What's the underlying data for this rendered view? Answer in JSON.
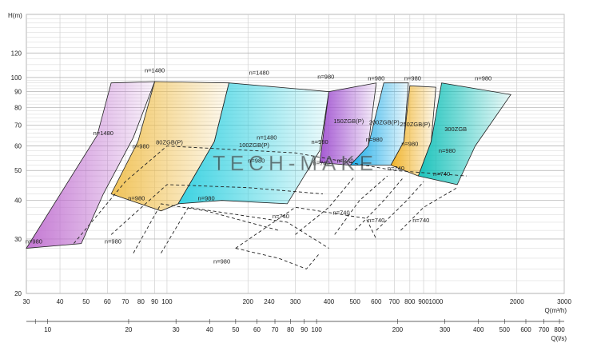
{
  "chart_data": {
    "type": "area",
    "title": "",
    "ylabel": "H(m)",
    "xlabel": "Q(m³/h)",
    "x2label": "Q(l/s)",
    "yscale": "log",
    "xscale": "log",
    "ylim": [
      20,
      160
    ],
    "xlim": [
      30,
      3000
    ],
    "grid": true,
    "watermark": "TECH-MAKE",
    "y_ticks": [
      "20",
      "30",
      "40",
      "50",
      "60",
      "70",
      "80",
      "90",
      "100",
      "120"
    ],
    "x_ticks": [
      {
        "v": 30,
        "label": "30"
      },
      {
        "v": 40,
        "label": "40"
      },
      {
        "v": 50,
        "label": "50"
      },
      {
        "v": 60,
        "label": "60"
      },
      {
        "v": 70,
        "label": "70"
      },
      {
        "v": 80,
        "label": "80"
      },
      {
        "v": 90,
        "label": "90"
      },
      {
        "v": 100,
        "label": "100"
      },
      {
        "v": 200,
        "label": "200"
      },
      {
        "v": 240,
        "label": "240"
      },
      {
        "v": 300,
        "label": "300"
      },
      {
        "v": 400,
        "label": "400"
      },
      {
        "v": 500,
        "label": "500"
      },
      {
        "v": 600,
        "label": "600"
      },
      {
        "v": 700,
        "label": "700"
      },
      {
        "v": 800,
        "label": "800"
      },
      {
        "v": 900,
        "label": "900"
      },
      {
        "v": 1000,
        "label": "1000"
      },
      {
        "v": 2000,
        "label": "2000"
      },
      {
        "v": 3000,
        "label": "3000"
      }
    ],
    "x2_ticks": [
      {
        "v": 10,
        "label": "10"
      },
      {
        "v": 20,
        "label": "20"
      },
      {
        "v": 30,
        "label": "30"
      },
      {
        "v": 40,
        "label": "40"
      },
      {
        "v": 50,
        "label": "50"
      },
      {
        "v": 60,
        "label": "60"
      },
      {
        "v": 70,
        "label": "70"
      },
      {
        "v": 80,
        "label": "80"
      },
      {
        "v": 90,
        "label": "90"
      },
      {
        "v": 100,
        "label": "100"
      },
      {
        "v": 200,
        "label": "200"
      },
      {
        "v": 300,
        "label": "300"
      },
      {
        "v": 400,
        "label": "400"
      },
      {
        "v": 500,
        "label": "500"
      },
      {
        "v": 600,
        "label": "600"
      },
      {
        "v": 700,
        "label": "700"
      },
      {
        "v": 800,
        "label": "800"
      }
    ],
    "regions": [
      {
        "name": "",
        "color": "#c070d0",
        "pts": [
          [
            30,
            28
          ],
          [
            55,
            65
          ],
          [
            62,
            96
          ],
          [
            90,
            97
          ],
          [
            75,
            64
          ],
          [
            58,
            42
          ],
          [
            48,
            29
          ]
        ]
      },
      {
        "name": "80ZGB(P)",
        "color": "#f0c050",
        "pts": [
          [
            62,
            42
          ],
          [
            78,
            62
          ],
          [
            90,
            97
          ],
          [
            170,
            96
          ],
          [
            150,
            62
          ],
          [
            110,
            39
          ],
          [
            95,
            37
          ]
        ]
      },
      {
        "name": "100ZGB(P)",
        "color": "#30d0e0",
        "pts": [
          [
            110,
            39
          ],
          [
            150,
            62
          ],
          [
            170,
            96
          ],
          [
            400,
            90
          ],
          [
            370,
            58
          ],
          [
            280,
            39
          ],
          [
            160,
            40
          ]
        ]
      },
      {
        "name": "150ZGB(P)",
        "color": "#a050d0",
        "pts": [
          [
            370,
            53
          ],
          [
            400,
            90
          ],
          [
            600,
            96
          ],
          [
            560,
            60
          ],
          [
            480,
            52
          ]
        ]
      },
      {
        "name": "200ZGB(P)",
        "color": "#10a8e8",
        "pts": [
          [
            480,
            52
          ],
          [
            560,
            60
          ],
          [
            640,
            96
          ],
          [
            790,
            96
          ],
          [
            760,
            62
          ],
          [
            680,
            52
          ]
        ]
      },
      {
        "name": "250ZGB(P)",
        "color": "#f0b020",
        "pts": [
          [
            680,
            52
          ],
          [
            760,
            62
          ],
          [
            800,
            94
          ],
          [
            1000,
            93
          ],
          [
            960,
            62
          ],
          [
            860,
            48
          ]
        ]
      },
      {
        "name": "300ZGB",
        "color": "#10c0b8",
        "pts": [
          [
            860,
            48
          ],
          [
            960,
            62
          ],
          [
            1050,
            96
          ],
          [
            1900,
            88
          ],
          [
            1400,
            60
          ],
          [
            1200,
            45
          ]
        ]
      }
    ],
    "speed_labels": [
      {
        "text": "n=1480",
        "q": 90,
        "h": 104
      },
      {
        "text": "n=1480",
        "q": 58,
        "h": 65
      },
      {
        "text": "n=980",
        "q": 32,
        "h": 29
      },
      {
        "text": "n=980",
        "q": 80,
        "h": 59
      },
      {
        "text": "n=980",
        "q": 77,
        "h": 40
      },
      {
        "text": "n=980",
        "q": 63,
        "h": 29
      },
      {
        "text": "n=1480",
        "q": 220,
        "h": 102
      },
      {
        "text": "n=1480",
        "q": 235,
        "h": 63
      },
      {
        "text": "n=980",
        "q": 215,
        "h": 53
      },
      {
        "text": "n=980",
        "q": 140,
        "h": 40
      },
      {
        "text": "n=980",
        "q": 160,
        "h": 25
      },
      {
        "text": "n=980",
        "q": 390,
        "h": 99
      },
      {
        "text": "n=980",
        "q": 370,
        "h": 61
      },
      {
        "text": "n=740",
        "q": 375,
        "h": 52
      },
      {
        "text": "n=740",
        "q": 265,
        "h": 35
      },
      {
        "text": "n=980",
        "q": 600,
        "h": 98
      },
      {
        "text": "n=980",
        "q": 590,
        "h": 62
      },
      {
        "text": "n=740",
        "q": 460,
        "h": 53
      },
      {
        "text": "n=740",
        "q": 445,
        "h": 36
      },
      {
        "text": "n=980",
        "q": 820,
        "h": 98
      },
      {
        "text": "n=980",
        "q": 800,
        "h": 60
      },
      {
        "text": "n=740",
        "q": 710,
        "h": 50
      },
      {
        "text": "n=740",
        "q": 600,
        "h": 34
      },
      {
        "text": "n=980",
        "q": 1500,
        "h": 98
      },
      {
        "text": "n=980",
        "q": 1100,
        "h": 57
      },
      {
        "text": "n=740",
        "q": 1050,
        "h": 48
      },
      {
        "text": "n=740",
        "q": 880,
        "h": 34
      }
    ],
    "dashed_curves": [
      [
        [
          45,
          29
        ],
        [
          70,
          46
        ],
        [
          100,
          60
        ],
        [
          300,
          57
        ],
        [
          700,
          50
        ],
        [
          1300,
          48
        ]
      ],
      [
        [
          62,
          31
        ],
        [
          100,
          45
        ],
        [
          200,
          44
        ],
        [
          380,
          42
        ]
      ],
      [
        [
          75,
          27
        ],
        [
          95,
          39
        ],
        [
          140,
          37
        ],
        [
          260,
          32
        ]
      ],
      [
        [
          95,
          27
        ],
        [
          120,
          38
        ],
        [
          280,
          34
        ],
        [
          400,
          28
        ]
      ],
      [
        [
          180,
          28
        ],
        [
          300,
          38
        ],
        [
          550,
          35
        ],
        [
          600,
          30
        ]
      ],
      [
        [
          180,
          28
        ],
        [
          260,
          26
        ],
        [
          330,
          24
        ],
        [
          370,
          27
        ]
      ],
      [
        [
          300,
          31
        ],
        [
          400,
          38
        ],
        [
          500,
          48
        ]
      ],
      [
        [
          420,
          31
        ],
        [
          520,
          40
        ],
        [
          660,
          48
        ]
      ],
      [
        [
          500,
          32
        ],
        [
          640,
          40
        ],
        [
          750,
          47
        ]
      ],
      [
        [
          600,
          32
        ],
        [
          780,
          40
        ],
        [
          900,
          46
        ]
      ],
      [
        [
          740,
          32
        ],
        [
          900,
          38
        ],
        [
          1200,
          44
        ]
      ]
    ]
  }
}
